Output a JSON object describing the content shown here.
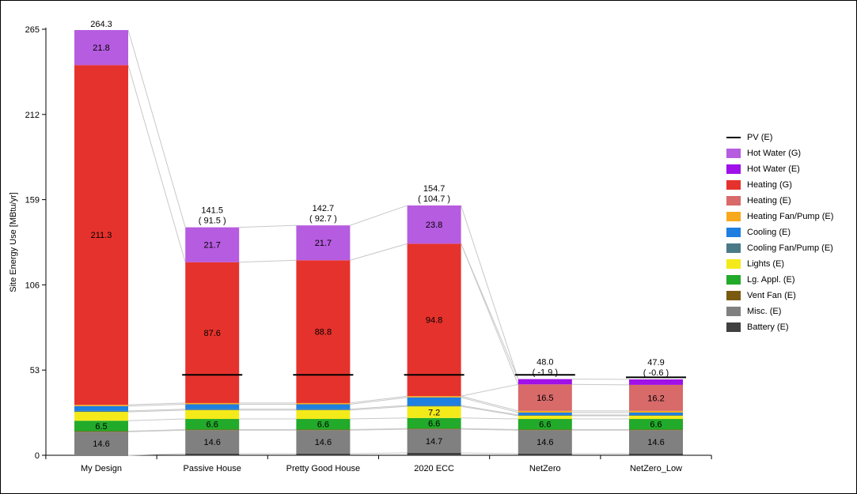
{
  "chart_data": {
    "type": "bar",
    "stacked": true,
    "ylabel": "Site Energy Use [MBtu/yr]",
    "xlabel": "",
    "ylim": [
      0,
      265
    ],
    "yticks": [
      0,
      53,
      106,
      159,
      212,
      265
    ],
    "categories": [
      "My Design",
      "Passive House",
      "Pretty Good House",
      "2020 ECC",
      "NetZero",
      "NetZero_Low"
    ],
    "totals": [
      "264.3",
      "141.5",
      "142.7",
      "154.7",
      "48.0",
      "47.9"
    ],
    "net_totals": [
      "",
      "( 91.5 )",
      "( 92.7 )",
      "( 104.7 )",
      "( -1.9 )",
      "( -0.6 )"
    ],
    "pv_net": [
      null,
      50,
      50,
      50,
      50,
      48.5
    ],
    "series": [
      {
        "name": "Battery (E)",
        "color": "#404040",
        "values": [
          0,
          1.0,
          1.0,
          1.5,
          1.0,
          1.0
        ],
        "labels": [
          "",
          "",
          "",
          "",
          "",
          ""
        ]
      },
      {
        "name": "Misc. (E)",
        "color": "#808080",
        "values": [
          14.6,
          14.6,
          14.6,
          14.7,
          14.6,
          14.6
        ],
        "labels": [
          "14.6",
          "14.6",
          "14.6",
          "14.7",
          "14.6",
          "14.6"
        ]
      },
      {
        "name": "Vent Fan (E)",
        "color": "#7a5a10",
        "values": [
          0.4,
          0.4,
          0.4,
          0.4,
          0.4,
          0.4
        ],
        "labels": [
          "",
          "",
          "",
          "",
          "",
          ""
        ]
      },
      {
        "name": "Lg. Appl. (E)",
        "color": "#22aa2a",
        "values": [
          6.5,
          6.6,
          6.6,
          6.6,
          6.6,
          6.6
        ],
        "labels": [
          "6.5",
          "6.6",
          "6.6",
          "6.6",
          "6.6",
          "6.6"
        ]
      },
      {
        "name": "Lights (E)",
        "color": "#f4ea1a",
        "values": [
          5.5,
          5.5,
          5.5,
          7.2,
          2.0,
          2.0
        ],
        "labels": [
          "",
          "",
          "",
          "7.2",
          "",
          ""
        ]
      },
      {
        "name": "Cooling Fan/Pump (E)",
        "color": "#4a7a88",
        "values": [
          0.6,
          0.6,
          0.6,
          0.6,
          0.5,
          0.5
        ],
        "labels": [
          "",
          "",
          "",
          "",
          "",
          ""
        ]
      },
      {
        "name": "Cooling (E)",
        "color": "#1e7fe0",
        "values": [
          3.0,
          3.0,
          3.0,
          5.0,
          1.5,
          1.5
        ],
        "labels": [
          "",
          "",
          "",
          "",
          "",
          ""
        ]
      },
      {
        "name": "Heating Fan/Pump (E)",
        "color": "#f8a81c",
        "values": [
          0.8,
          0.8,
          0.8,
          0.8,
          1.0,
          1.0
        ],
        "labels": [
          "",
          "",
          "",
          "",
          "",
          ""
        ]
      },
      {
        "name": "Heating (E)",
        "color": "#d86a6a",
        "values": [
          0,
          0,
          0,
          0,
          16.5,
          16.2
        ],
        "labels": [
          "",
          "",
          "",
          "",
          "16.5",
          "16.2"
        ]
      },
      {
        "name": "Heating (G)",
        "color": "#e6322c",
        "values": [
          211.3,
          87.6,
          88.8,
          94.8,
          0,
          0
        ],
        "labels": [
          "211.3",
          "87.6",
          "88.8",
          "94.8",
          "",
          ""
        ]
      },
      {
        "name": "Hot Water (E)",
        "color": "#a010e8",
        "values": [
          0,
          0,
          0,
          0,
          3.3,
          3.4
        ],
        "labels": [
          "",
          "",
          "",
          "",
          "",
          ""
        ]
      },
      {
        "name": "Hot Water (G)",
        "color": "#b65ce0",
        "values": [
          21.8,
          21.7,
          21.7,
          23.8,
          0,
          0
        ],
        "labels": [
          "21.8",
          "21.7",
          "21.7",
          "23.8",
          "",
          ""
        ]
      }
    ],
    "legend": [
      {
        "name": "PV (E)",
        "color": "#000000",
        "kind": "line"
      },
      {
        "name": "Hot Water (G)",
        "color": "#b65ce0",
        "kind": "box"
      },
      {
        "name": "Hot Water (E)",
        "color": "#a010e8",
        "kind": "box"
      },
      {
        "name": "Heating (G)",
        "color": "#e6322c",
        "kind": "box"
      },
      {
        "name": "Heating (E)",
        "color": "#d86a6a",
        "kind": "box"
      },
      {
        "name": "Heating Fan/Pump (E)",
        "color": "#f8a81c",
        "kind": "box"
      },
      {
        "name": "Cooling (E)",
        "color": "#1e7fe0",
        "kind": "box"
      },
      {
        "name": "Cooling Fan/Pump (E)",
        "color": "#4a7a88",
        "kind": "box"
      },
      {
        "name": "Lights (E)",
        "color": "#f4ea1a",
        "kind": "box"
      },
      {
        "name": "Lg. Appl. (E)",
        "color": "#22aa2a",
        "kind": "box"
      },
      {
        "name": "Vent Fan (E)",
        "color": "#7a5a10",
        "kind": "box"
      },
      {
        "name": "Misc. (E)",
        "color": "#808080",
        "kind": "box"
      },
      {
        "name": "Battery (E)",
        "color": "#404040",
        "kind": "box"
      }
    ],
    "legend_position": "right"
  }
}
